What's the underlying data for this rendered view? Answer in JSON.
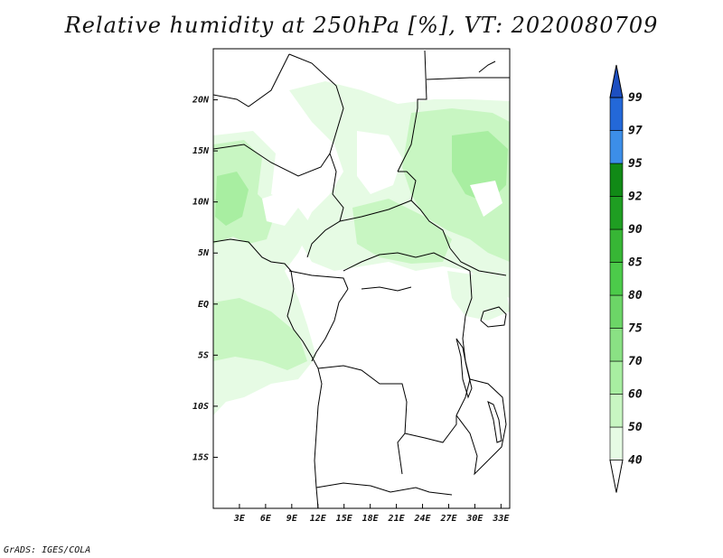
{
  "title": "Relative humidity at 250hPa [%], VT: 2020080709",
  "credit": "GrADS: IGES/COLA",
  "map": {
    "variable": "Relative humidity",
    "level": "250hPa",
    "units": "%",
    "valid_time": "2020080709",
    "lon_range": [
      0,
      34
    ],
    "lat_range": [
      -20,
      25
    ],
    "lon_ticks": [
      {
        "value": 3,
        "label": "3E"
      },
      {
        "value": 6,
        "label": "6E"
      },
      {
        "value": 9,
        "label": "9E"
      },
      {
        "value": 12,
        "label": "12E"
      },
      {
        "value": 15,
        "label": "15E"
      },
      {
        "value": 18,
        "label": "18E"
      },
      {
        "value": 21,
        "label": "21E"
      },
      {
        "value": 24,
        "label": "24E"
      },
      {
        "value": 27,
        "label": "27E"
      },
      {
        "value": 30,
        "label": "30E"
      },
      {
        "value": 33,
        "label": "33E"
      }
    ],
    "lat_ticks": [
      {
        "value": 20,
        "label": "20N"
      },
      {
        "value": 15,
        "label": "15N"
      },
      {
        "value": 10,
        "label": "10N"
      },
      {
        "value": 5,
        "label": "5N"
      },
      {
        "value": 0,
        "label": "EQ"
      },
      {
        "value": -5,
        "label": "5S"
      },
      {
        "value": -10,
        "label": "10S"
      },
      {
        "value": -15,
        "label": "15S"
      }
    ]
  },
  "colorbar": {
    "levels": [
      "40",
      "50",
      "60",
      "70",
      "75",
      "80",
      "85",
      "90",
      "92",
      "95",
      "97",
      "99"
    ],
    "colors": [
      "#ffffff",
      "#e6fbe4",
      "#c8f6c2",
      "#a8eea1",
      "#8ae184",
      "#6cd567",
      "#4ccb4a",
      "#37b635",
      "#1f9e22",
      "#118a16",
      "#3c8ee8",
      "#2368d8",
      "#1d4fc1"
    ]
  }
}
